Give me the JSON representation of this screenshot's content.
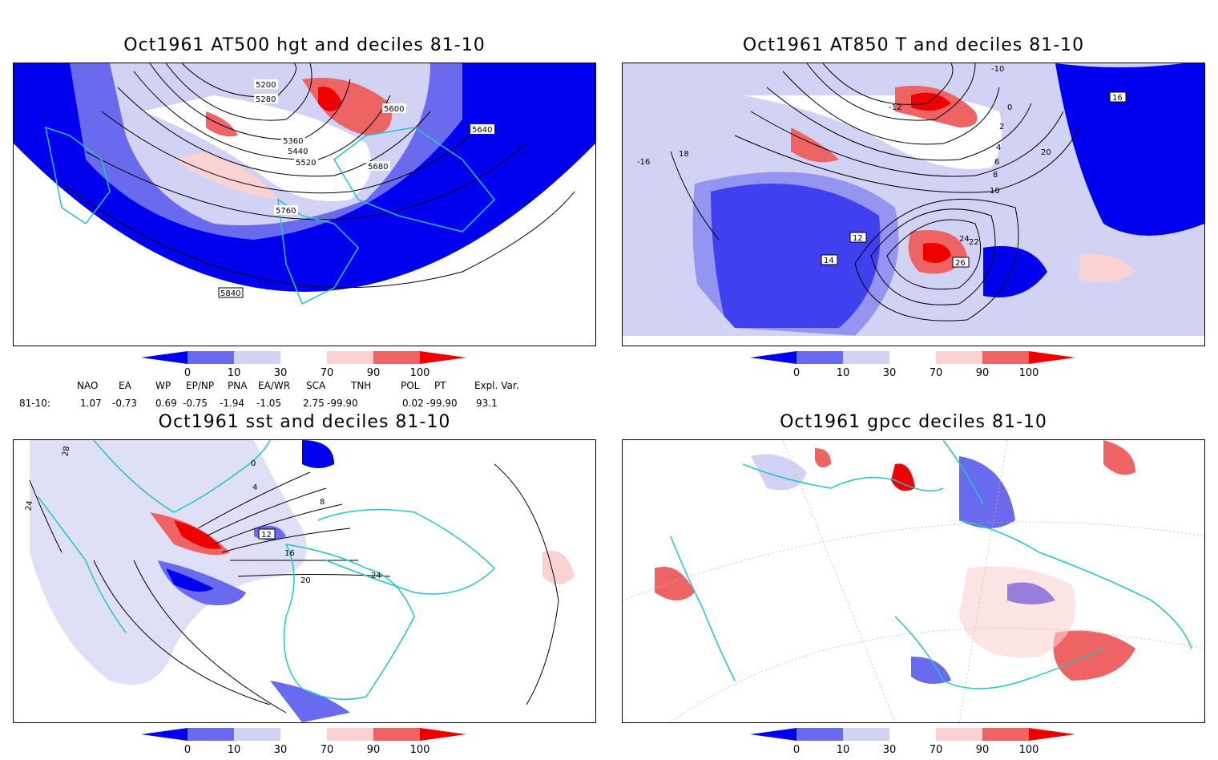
{
  "colors": {
    "d0": "#0000ee",
    "d10": "#6a6aee",
    "d30": "#d2d2f4",
    "d70": "#fbd2d2",
    "d90": "#ee6464",
    "d100": "#ee0000",
    "coast": "#1fc6c6",
    "contour": "#000000"
  },
  "colorbar": {
    "ticks": [
      "0",
      "10",
      "30",
      "70",
      "90",
      "100"
    ]
  },
  "panels": [
    {
      "title": "Oct1961 AT500 hgt and deciles 81-10",
      "contour_labels": [
        "5200",
        "5280",
        "5360",
        "5440",
        "5520",
        "5600",
        "5640",
        "5680",
        "5760",
        "5840"
      ]
    },
    {
      "title": "Oct1961 AT850 T and deciles 81-10",
      "contour_labels": [
        "-10",
        "-12",
        "-16",
        "0",
        "2",
        "4",
        "6",
        "8",
        "10",
        "12",
        "14",
        "16",
        "18",
        "20",
        "22",
        "24",
        "26"
      ]
    },
    {
      "title": "Oct1961 sst and deciles 81-10",
      "contour_labels": [
        "28",
        "24",
        "0",
        "4",
        "8",
        "12",
        "16",
        "20",
        "24"
      ]
    },
    {
      "title": "Oct1961 gpcc deciles 81-10",
      "contour_labels": []
    }
  ],
  "indices": {
    "headers": [
      "NAO",
      "EA",
      "WP",
      "EP/NP",
      "PNA",
      "EA/WR",
      "SCA",
      "TNH",
      "POL",
      "PT",
      "Expl. Var."
    ],
    "row_label": "81-10:",
    "values": [
      "1.07",
      "-0.73",
      "0.69",
      "-0.75",
      "-1.94",
      "-1.05",
      "2.75",
      "-99.90",
      "0.02",
      "-99.90",
      "93.1"
    ]
  }
}
